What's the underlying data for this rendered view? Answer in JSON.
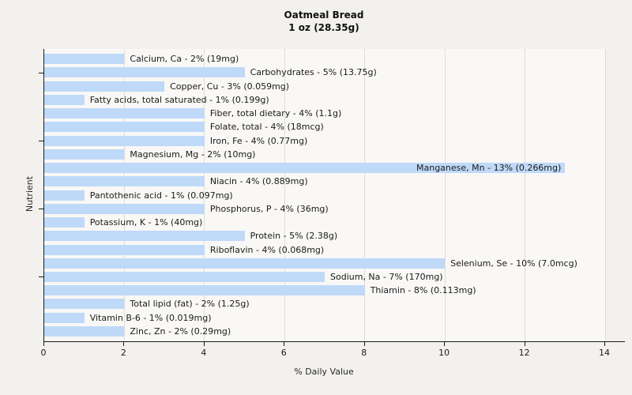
{
  "title": {
    "line1": "Oatmeal Bread",
    "line2": "1 oz (28.35g)"
  },
  "chart_data": {
    "type": "bar",
    "orientation": "horizontal",
    "title": "Oatmeal Bread 1 oz (28.35g)",
    "xlabel": "% Daily Value",
    "ylabel": "Nutrient",
    "xlim": [
      0,
      14
    ],
    "x_ticks": [
      0,
      2,
      4,
      6,
      8,
      10,
      12,
      14
    ],
    "grid": "vertical-light",
    "legend": "none",
    "bar_color": "#bfd9f8",
    "y_tick_row_indices": [
      1,
      6,
      11,
      16
    ],
    "categories": [
      "Calcium, Ca",
      "Carbohydrates",
      "Copper, Cu",
      "Fatty acids, total saturated",
      "Fiber, total dietary",
      "Folate, total",
      "Iron, Fe",
      "Magnesium, Mg",
      "Manganese, Mn",
      "Niacin",
      "Pantothenic acid",
      "Phosphorus, P",
      "Potassium, K",
      "Protein",
      "Riboflavin",
      "Selenium, Se",
      "Sodium, Na",
      "Thiamin",
      "Total lipid (fat)",
      "Vitamin B-6",
      "Zinc, Zn"
    ],
    "values": [
      2,
      5,
      3,
      1,
      4,
      4,
      4,
      2,
      13,
      4,
      1,
      4,
      1,
      5,
      4,
      10,
      7,
      8,
      2,
      1,
      2
    ],
    "nutrients": [
      {
        "name": "Calcium, Ca",
        "percent": 2,
        "amount": "19mg",
        "label": "Calcium, Ca - 2% (19mg)"
      },
      {
        "name": "Carbohydrates",
        "percent": 5,
        "amount": "13.75g",
        "label": "Carbohydrates - 5% (13.75g)"
      },
      {
        "name": "Copper, Cu",
        "percent": 3,
        "amount": "0.059mg",
        "label": "Copper, Cu - 3% (0.059mg)"
      },
      {
        "name": "Fatty acids, total saturated",
        "percent": 1,
        "amount": "0.199g",
        "label": "Fatty acids, total saturated - 1% (0.199g)"
      },
      {
        "name": "Fiber, total dietary",
        "percent": 4,
        "amount": "1.1g",
        "label": "Fiber, total dietary - 4% (1.1g)"
      },
      {
        "name": "Folate, total",
        "percent": 4,
        "amount": "18mcg",
        "label": "Folate, total - 4% (18mcg)"
      },
      {
        "name": "Iron, Fe",
        "percent": 4,
        "amount": "0.77mg",
        "label": "Iron, Fe - 4% (0.77mg)"
      },
      {
        "name": "Magnesium, Mg",
        "percent": 2,
        "amount": "10mg",
        "label": "Magnesium, Mg - 2% (10mg)"
      },
      {
        "name": "Manganese, Mn",
        "percent": 13,
        "amount": "0.266mg",
        "label": "Manganese, Mn - 13% (0.266mg)",
        "label_inside": true
      },
      {
        "name": "Niacin",
        "percent": 4,
        "amount": "0.889mg",
        "label": "Niacin - 4% (0.889mg)"
      },
      {
        "name": "Pantothenic acid",
        "percent": 1,
        "amount": "0.097mg",
        "label": "Pantothenic acid - 1% (0.097mg)"
      },
      {
        "name": "Phosphorus, P",
        "percent": 4,
        "amount": "36mg",
        "label": "Phosphorus, P - 4% (36mg)"
      },
      {
        "name": "Potassium, K",
        "percent": 1,
        "amount": "40mg",
        "label": "Potassium, K - 1% (40mg)"
      },
      {
        "name": "Protein",
        "percent": 5,
        "amount": "2.38g",
        "label": "Protein - 5% (2.38g)"
      },
      {
        "name": "Riboflavin",
        "percent": 4,
        "amount": "0.068mg",
        "label": "Riboflavin - 4% (0.068mg)"
      },
      {
        "name": "Selenium, Se",
        "percent": 10,
        "amount": "7.0mcg",
        "label": "Selenium, Se - 10% (7.0mcg)"
      },
      {
        "name": "Sodium, Na",
        "percent": 7,
        "amount": "170mg",
        "label": "Sodium, Na - 7% (170mg)"
      },
      {
        "name": "Thiamin",
        "percent": 8,
        "amount": "0.113mg",
        "label": "Thiamin - 8% (0.113mg)"
      },
      {
        "name": "Total lipid (fat)",
        "percent": 2,
        "amount": "1.25g",
        "label": "Total lipid (fat) - 2% (1.25g)"
      },
      {
        "name": "Vitamin B-6",
        "percent": 1,
        "amount": "0.019mg",
        "label": "Vitamin B-6 - 1% (0.019mg)"
      },
      {
        "name": "Zinc, Zn",
        "percent": 2,
        "amount": "0.29mg",
        "label": "Zinc, Zn - 2% (0.29mg)"
      }
    ]
  }
}
